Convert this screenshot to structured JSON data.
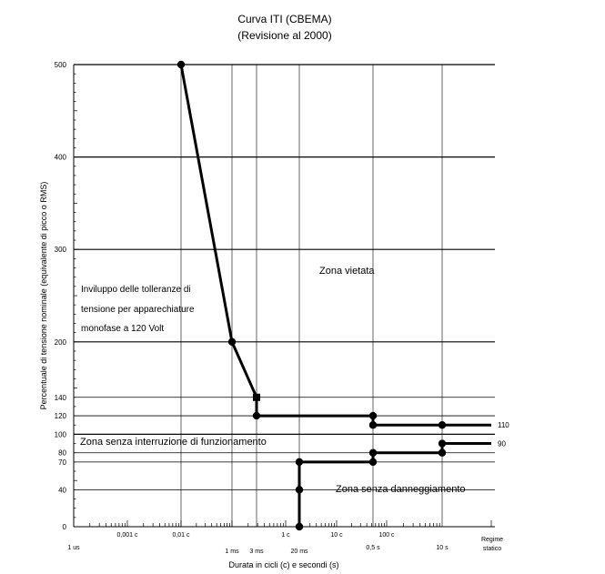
{
  "chart_data": {
    "type": "line",
    "title": "Curva ITI (CBEMA)",
    "subtitle": "(Revisione al 2000)",
    "xlabel": "Durata in cicli (c) e secondi (s)",
    "ylabel": "Percentuale di tensione nominale (equivalente di picco o RMS)",
    "x_scale": "log",
    "xlim": [
      "1 us",
      "Regime statico"
    ],
    "ylim": [
      0,
      500
    ],
    "grid": true,
    "y_ticks": [
      {
        "value": 0,
        "label": "0"
      },
      {
        "value": 40,
        "label": "40"
      },
      {
        "value": 70,
        "label": "70"
      },
      {
        "value": 80,
        "label": "80"
      },
      {
        "value": 100,
        "label": "100"
      },
      {
        "value": 120,
        "label": "120"
      },
      {
        "value": 140,
        "label": "140"
      },
      {
        "value": 200,
        "label": "200"
      },
      {
        "value": 300,
        "label": "300"
      },
      {
        "value": 400,
        "label": "400"
      },
      {
        "value": 500,
        "label": "500"
      }
    ],
    "x_ticks_top": [
      {
        "at": "1 ms",
        "label": "0,001 c"
      },
      {
        "at": "0,01 c",
        "label": "0,01 c"
      },
      {
        "at": "1 c",
        "label": "1 c"
      },
      {
        "at": "10 c",
        "label": "10 c"
      },
      {
        "at": "100 c",
        "label": "100 c"
      }
    ],
    "x_ticks_bottom": [
      {
        "at": "1 us",
        "label": "1 us"
      },
      {
        "at": "1 ms",
        "label": "1 ms"
      },
      {
        "at": "3 ms",
        "label": "3 ms"
      },
      {
        "at": "20 ms",
        "label": "20 ms"
      },
      {
        "at": "0,5 s",
        "label": "0,5 s"
      },
      {
        "at": "10 s",
        "label": "10 s"
      },
      {
        "at": "Regime statico",
        "label": "Regime statico"
      }
    ],
    "series": [
      {
        "name": "upper",
        "points": [
          {
            "x": "0,01 c",
            "y": 500
          },
          {
            "x": "1 ms",
            "y": 200
          },
          {
            "x": "3 ms",
            "y": 140
          },
          {
            "x": "3 ms",
            "y": 120
          },
          {
            "x": "0,5 s",
            "y": 120
          },
          {
            "x": "0,5 s",
            "y": 110
          },
          {
            "x": "10 s",
            "y": 110
          },
          {
            "x": "Regime statico",
            "y": 110
          }
        ],
        "end_label": "110"
      },
      {
        "name": "lower",
        "points": [
          {
            "x": "20 ms",
            "y": 0
          },
          {
            "x": "20 ms",
            "y": 40
          },
          {
            "x": "20 ms",
            "y": 70
          },
          {
            "x": "0,5 s",
            "y": 70
          },
          {
            "x": "0,5 s",
            "y": 80
          },
          {
            "x": "10 s",
            "y": 80
          },
          {
            "x": "10 s",
            "y": 90
          },
          {
            "x": "Regime statico",
            "y": 90
          }
        ],
        "end_label": "90"
      }
    ],
    "annotations": [
      {
        "text_lines": [
          "Inviluppo delle tolleranze di",
          "tensione per apparechiature",
          "monofase a 120 Volt"
        ]
      },
      {
        "text": "Zona vietata"
      },
      {
        "text": "Zona senza interruzione di funzionamento"
      },
      {
        "text": "Zona senza danneggiamento"
      }
    ]
  }
}
